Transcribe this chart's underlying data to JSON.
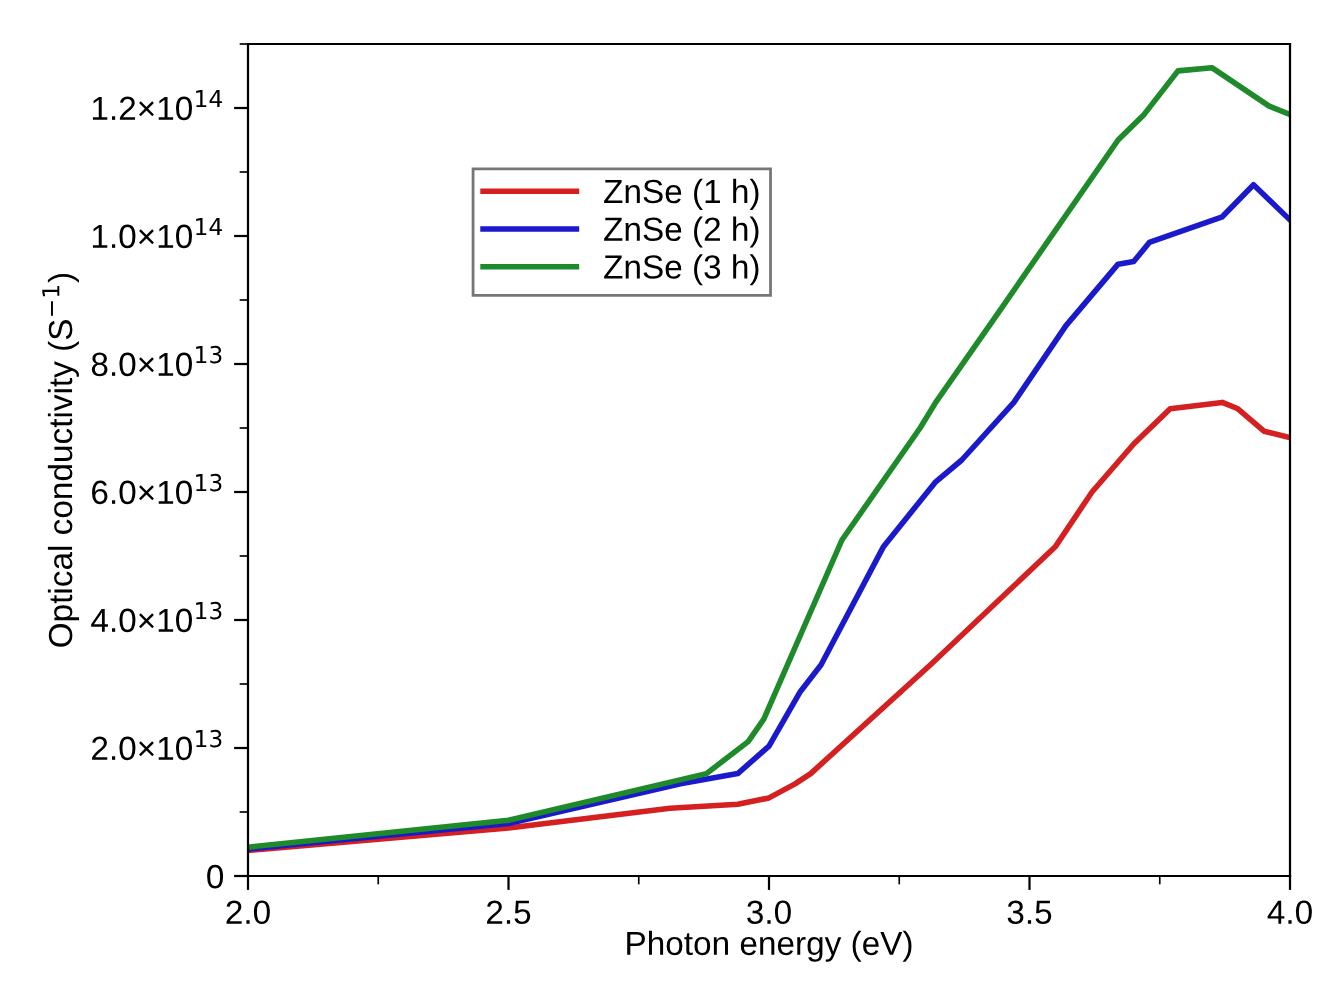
{
  "chart_data": {
    "type": "line",
    "xlabel": "Photon energy (eV)",
    "ylabel": "Optical conductivity (S$^{−1}$)",
    "xlim": [
      2.0,
      4.0
    ],
    "xticks": [
      {
        "value": 2.0,
        "label": "2.0"
      },
      {
        "value": 2.5,
        "label": "2.5"
      },
      {
        "value": 3.0,
        "label": "3.0"
      },
      {
        "value": 3.5,
        "label": "3.5"
      },
      {
        "value": 4.0,
        "label": "4.0"
      }
    ],
    "ylim": [
      0,
      130000000000000.0
    ],
    "yticks": [
      {
        "value": 0,
        "label": "0"
      },
      {
        "value": 20000000000000.0,
        "label": "2.0×10$^{13}$"
      },
      {
        "value": 40000000000000.0,
        "label": "4.0×10$^{13}$"
      },
      {
        "value": 60000000000000.0,
        "label": "6.0×10$^{13}$"
      },
      {
        "value": 80000000000000.0,
        "label": "8.0×10$^{13}$"
      },
      {
        "value": 100000000000000.0,
        "label": "1.0×10$^{14}$"
      },
      {
        "value": 120000000000000.0,
        "label": "1.2×10$^{14}$"
      }
    ],
    "grid": false,
    "legend": "top left",
    "line_style": "solid",
    "marker": "none",
    "series": [
      {
        "name": "ZnSe (1 h)",
        "color": "#d42020",
        "x": [
          2.0,
          2.5,
          2.81,
          2.94,
          3.0,
          3.05,
          3.08,
          3.31,
          3.55,
          3.62,
          3.7,
          3.77,
          3.87,
          3.9,
          3.95,
          4.0
        ],
        "values": [
          4000000000000.0,
          7500000000000.0,
          10600000000000.0,
          11200000000000.0,
          12200000000000.0,
          14400000000000.0,
          16000000000000.0,
          33000000000000.0,
          51500000000000.0,
          60000000000000.0,
          67500000000000.0,
          73000000000000.0,
          74000000000000.0,
          73000000000000.0,
          69500000000000.0,
          68500000000000.0
        ]
      },
      {
        "name": "ZnSe (2 h)",
        "color": "#1a1acc",
        "x": [
          2.0,
          2.5,
          2.83,
          2.94,
          3.0,
          3.06,
          3.1,
          3.22,
          3.32,
          3.37,
          3.47,
          3.57,
          3.67,
          3.7,
          3.73,
          3.87,
          3.93,
          4.0
        ],
        "values": [
          4200000000000.0,
          8200000000000.0,
          14400000000000.0,
          16000000000000.0,
          20300000000000.0,
          28800000000000.0,
          33000000000000.0,
          51500000000000.0,
          61600000000000.0,
          65000000000000.0,
          74000000000000.0,
          86000000000000.0,
          95600000000000.0,
          96000000000000.0,
          99000000000000.0,
          103000000000000.0,
          108000000000000.0,
          102500000000000.0
        ]
      },
      {
        "name": "ZnSe (3 h)",
        "color": "#1e8a2a",
        "x": [
          2.0,
          2.5,
          2.88,
          2.96,
          2.99,
          3.14,
          3.29,
          3.32,
          3.44,
          3.67,
          3.72,
          3.785,
          3.85,
          3.96,
          4.0
        ],
        "values": [
          4500000000000.0,
          8700000000000.0,
          16000000000000.0,
          21000000000000.0,
          24500000000000.0,
          52500000000000.0,
          70000000000000.0,
          74000000000000.0,
          88000000000000.0,
          115000000000000.0,
          119000000000000.0,
          125800000000000.0,
          126300000000000.0,
          120300000000000.0,
          119000000000000.0
        ]
      }
    ]
  }
}
